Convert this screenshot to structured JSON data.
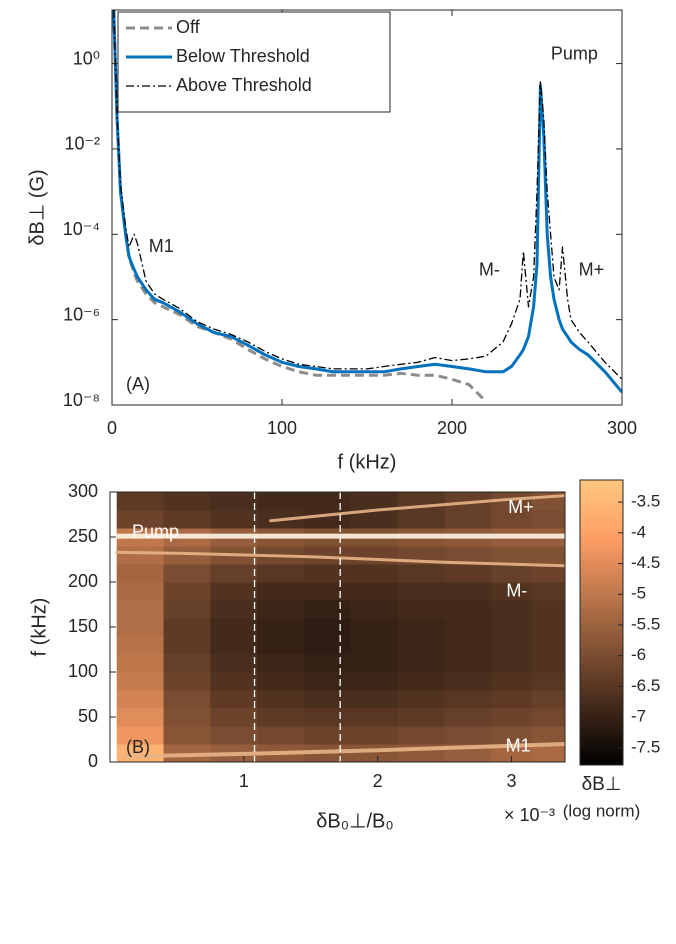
{
  "chart_data": [
    {
      "type": "line",
      "log_y": true,
      "legend": "upper left",
      "panel_label": "(A)",
      "xlabel": "f (kHz)",
      "ylabel": "δB⊥ (G)",
      "xlim": [
        0,
        300
      ],
      "xticks": [
        0,
        100,
        200,
        300
      ],
      "ylim": [
        1e-08,
        18
      ],
      "yticks": [
        {
          "value": 1e-08,
          "label": "10⁻⁸"
        },
        {
          "value": 1e-06,
          "label": "10⁻⁶"
        },
        {
          "value": 0.0001,
          "label": "10⁻⁴"
        },
        {
          "value": 0.01,
          "label": "10⁻²"
        },
        {
          "value": 1,
          "label": "10⁰"
        }
      ],
      "x": [
        1,
        3,
        5,
        8,
        10,
        13,
        15,
        20,
        25,
        30,
        40,
        50,
        60,
        70,
        80,
        90,
        100,
        110,
        120,
        130,
        140,
        150,
        160,
        170,
        180,
        190,
        200,
        210,
        220,
        230,
        235,
        240,
        242,
        245,
        248,
        250,
        252,
        254,
        256,
        258,
        260,
        263,
        265,
        268,
        270,
        275,
        280,
        290,
        300
      ],
      "series": [
        {
          "name": "Off",
          "color": "#8c8c8c",
          "dash": "dashed",
          "width": 3,
          "values": [
            18,
            0.05,
            0.001,
            0.0001,
            3e-05,
            1.2e-05,
            8e-06,
            4e-06,
            2.5e-06,
            2e-06,
            1.3e-06,
            7e-07,
            5e-07,
            3.5e-07,
            2e-07,
            1.2e-07,
            8e-08,
            6e-08,
            5e-08,
            5e-08,
            5e-08,
            5e-08,
            5e-08,
            5.5e-08,
            5e-08,
            5e-08,
            4e-08,
            3e-08,
            1.2e-08,
            null,
            null,
            null,
            null,
            null,
            null,
            null,
            null,
            null,
            null,
            null,
            null,
            null,
            null,
            null,
            null,
            null,
            null,
            null,
            null
          ]
        },
        {
          "name": "Below Threshold",
          "color": "#0072bd",
          "dash": "solid",
          "width": 3,
          "values": [
            18,
            0.05,
            0.001,
            0.0001,
            3e-05,
            1.5e-05,
            1e-05,
            5e-06,
            3e-06,
            2.5e-06,
            1.5e-06,
            8e-07,
            5e-07,
            4e-07,
            2.5e-07,
            1.5e-07,
            1e-07,
            8e-08,
            7e-08,
            6e-08,
            6e-08,
            6e-08,
            6e-08,
            7e-08,
            8e-08,
            9e-08,
            8e-08,
            7e-08,
            6e-08,
            6e-08,
            8e-08,
            1.5e-07,
            2e-07,
            4e-07,
            2e-06,
            2e-05,
            0.3,
            0.02,
            0.0001,
            1e-05,
            3e-06,
            1e-06,
            6e-07,
            4e-07,
            3e-07,
            2e-07,
            1.5e-07,
            6e-08,
            2e-08
          ]
        },
        {
          "name": "Above Threshold",
          "color": "#000000",
          "dash": "dashdot",
          "width": 1.3,
          "values": [
            18,
            0.06,
            0.0015,
            0.00015,
            5e-05,
            0.0001,
            6e-05,
            8e-06,
            4e-06,
            3e-06,
            1.8e-06,
            9e-07,
            6e-07,
            4.5e-07,
            3e-07,
            1.8e-07,
            1.2e-07,
            9e-08,
            8e-08,
            7e-08,
            7e-08,
            7e-08,
            8e-08,
            9e-08,
            1e-07,
            1.3e-07,
            1.1e-07,
            1.2e-07,
            1.4e-07,
            3e-07,
            8e-07,
            3e-06,
            4e-05,
            2e-06,
            1e-05,
            0.001,
            0.4,
            0.05,
            0.001,
            0.0001,
            1e-05,
            5e-06,
            5e-05,
            3e-06,
            1e-06,
            5e-07,
            3e-07,
            1e-07,
            4e-08
          ]
        }
      ],
      "annotations": [
        {
          "text": "Pump",
          "x": 272,
          "y": 1.6
        },
        {
          "text": "M1",
          "x": 29,
          "y": 5e-05
        },
        {
          "text": "M-",
          "x": 222,
          "y": 1.4e-05
        },
        {
          "text": "M+",
          "x": 282,
          "y": 1.4e-05
        }
      ]
    },
    {
      "type": "heatmap",
      "colormap": "copper",
      "panel_label": "(B)",
      "xlabel": "δB₀⊥/B₀",
      "x_multiplier": "× 10⁻³",
      "ylabel": "f (kHz)",
      "xlim": [
        0,
        3.4
      ],
      "xticks": [
        1,
        2,
        3
      ],
      "ylim": [
        0,
        300
      ],
      "yticks": [
        0,
        50,
        100,
        150,
        200,
        250,
        300
      ],
      "x_edges": [
        0.05,
        0.4,
        0.75,
        1.1,
        1.45,
        1.8,
        2.15,
        2.5,
        2.85,
        3.15,
        3.4
      ],
      "y_edges": [
        0,
        20,
        40,
        60,
        80,
        100,
        120,
        140,
        160,
        180,
        200,
        220,
        240,
        260,
        280,
        300
      ],
      "z": [
        [
          -3.6,
          -5.4,
          -5.6,
          -5.7,
          -5.8,
          -5.8,
          -5.7,
          -5.6,
          -5.4,
          -5.3
        ],
        [
          -4.3,
          -5.8,
          -6.0,
          -6.1,
          -6.2,
          -6.2,
          -6.1,
          -6.0,
          -5.9,
          -5.8
        ],
        [
          -4.5,
          -5.9,
          -6.2,
          -6.4,
          -6.5,
          -6.5,
          -6.4,
          -6.3,
          -6.2,
          -6.1
        ],
        [
          -4.7,
          -6.0,
          -6.4,
          -6.6,
          -6.7,
          -6.7,
          -6.6,
          -6.5,
          -6.4,
          -6.3
        ],
        [
          -4.9,
          -6.2,
          -6.6,
          -6.8,
          -6.9,
          -6.9,
          -6.8,
          -6.7,
          -6.6,
          -6.5
        ],
        [
          -5.0,
          -6.3,
          -6.7,
          -6.9,
          -7.0,
          -7.0,
          -6.9,
          -6.8,
          -6.7,
          -6.6
        ],
        [
          -5.1,
          -6.4,
          -6.8,
          -7.0,
          -7.1,
          -7.0,
          -6.9,
          -6.8,
          -6.7,
          -6.6
        ],
        [
          -5.2,
          -6.4,
          -6.8,
          -7.0,
          -7.1,
          -7.0,
          -6.9,
          -6.8,
          -6.7,
          -6.6
        ],
        [
          -5.2,
          -6.3,
          -6.7,
          -6.9,
          -7.0,
          -6.9,
          -6.8,
          -6.8,
          -6.7,
          -6.6
        ],
        [
          -5.3,
          -6.2,
          -6.6,
          -6.8,
          -6.8,
          -6.8,
          -6.7,
          -6.7,
          -6.6,
          -6.5
        ],
        [
          -5.4,
          -6.0,
          -6.3,
          -6.5,
          -6.6,
          -6.6,
          -6.5,
          -6.4,
          -6.3,
          -6.2
        ],
        [
          -5.2,
          -5.6,
          -5.9,
          -6.1,
          -6.2,
          -6.2,
          -6.1,
          -6.0,
          -5.9,
          -5.9
        ],
        [
          -5.0,
          -5.3,
          -5.6,
          -5.8,
          -5.9,
          -5.9,
          -5.8,
          -5.7,
          -5.6,
          -5.6
        ],
        [
          -6.2,
          -6.4,
          -6.6,
          -6.7,
          -6.8,
          -6.7,
          -6.5,
          -6.3,
          -6.1,
          -6.0
        ],
        [
          -6.4,
          -6.6,
          -6.7,
          -6.8,
          -6.8,
          -6.7,
          -6.5,
          -6.3,
          -6.1,
          -5.9
        ]
      ],
      "clim": [
        -7.78,
        -3.14
      ],
      "cticks": [
        -3.5,
        -4,
        -4.5,
        -5,
        -5.5,
        -6,
        -6.5,
        -7,
        -7.5
      ],
      "colorbar_label": "δB⊥",
      "colorbar_sublabel": "(log norm)",
      "vlines": [
        1.08,
        1.72
      ],
      "ridges": [
        {
          "color": "#fff4e6",
          "width": 5,
          "x": [
            0.05,
            3.4
          ],
          "y": [
            251,
            251
          ]
        },
        {
          "color": "#e8b487",
          "width": 3,
          "x": [
            1.2,
            2.0,
            3.0,
            3.4
          ],
          "y": [
            268,
            280,
            292,
            296
          ]
        },
        {
          "color": "#e8b487",
          "width": 3,
          "x": [
            0.05,
            0.5,
            1.5,
            2.5,
            3.4
          ],
          "y": [
            233,
            232,
            228,
            222,
            218
          ]
        },
        {
          "color": "#e8b487",
          "width": 4,
          "x": [
            0.1,
            1,
            2,
            3,
            3.4
          ],
          "y": [
            6,
            9,
            13,
            18,
            20
          ]
        }
      ],
      "annotations": [
        {
          "text": "Pump",
          "x": 0.34,
          "y": 255
        },
        {
          "text": "M+",
          "x": 3.07,
          "y": 282
        },
        {
          "text": "M-",
          "x": 3.04,
          "y": 189
        },
        {
          "text": "M1",
          "x": 3.05,
          "y": 17
        }
      ]
    }
  ]
}
